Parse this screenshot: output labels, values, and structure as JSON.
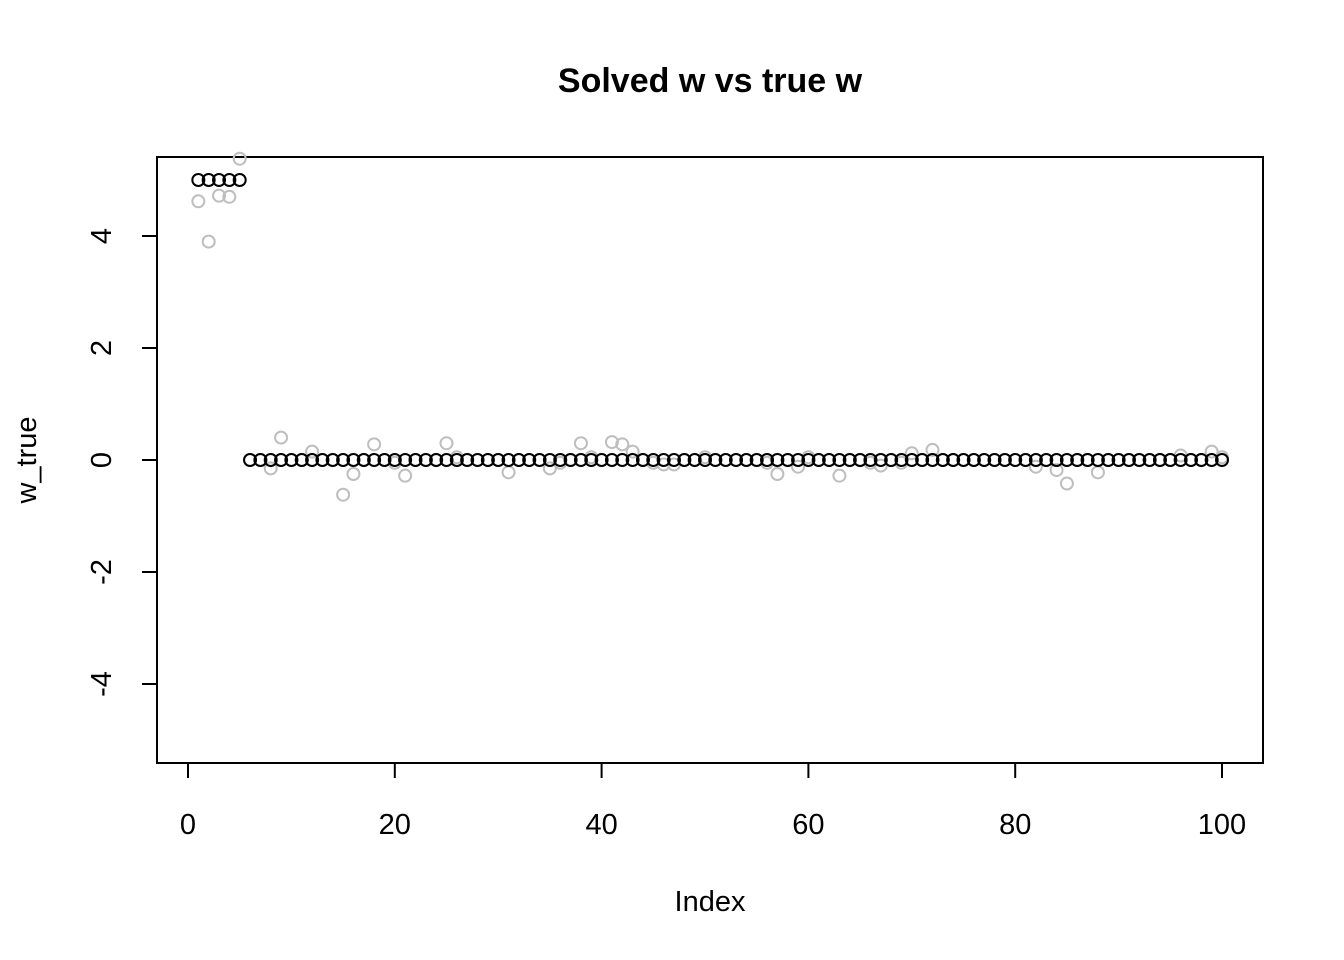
{
  "chart_data": {
    "type": "scatter",
    "title": "Solved w vs true w",
    "xlabel": "Index",
    "ylabel": "w_true",
    "xlim": [
      -3,
      104
    ],
    "ylim": [
      -5.4,
      5.4
    ],
    "xticks": [
      0,
      20,
      40,
      60,
      80,
      100
    ],
    "yticks": [
      -4,
      -2,
      0,
      2,
      4
    ],
    "grid": false,
    "legend": "none",
    "colors": {
      "w_true": "#000000",
      "w_solved": "#bebebe"
    },
    "series": [
      {
        "values": [
          5,
          5,
          5,
          5,
          5,
          0,
          0,
          0,
          0,
          0,
          0,
          0,
          0,
          0,
          0,
          0,
          0,
          0,
          0,
          0,
          0,
          0,
          0,
          0,
          0,
          0,
          0,
          0,
          0,
          0,
          0,
          0,
          0,
          0,
          0,
          0,
          0,
          0,
          0,
          0,
          0,
          0,
          0,
          0,
          0,
          0,
          0,
          0,
          0,
          0,
          0,
          0,
          0,
          0,
          0,
          0,
          0,
          0,
          0,
          0,
          0,
          0,
          0,
          0,
          0,
          0,
          0,
          0,
          0,
          0,
          0,
          0,
          0,
          0,
          0,
          0,
          0,
          0,
          0,
          0,
          0,
          0,
          0,
          0,
          0,
          0,
          0,
          0,
          0,
          0,
          0,
          0,
          0,
          0,
          0,
          0,
          0,
          0,
          0,
          0
        ]
      },
      {
        "values": [
          4.62,
          3.9,
          4.72,
          4.7,
          5.38,
          0,
          0,
          -0.15,
          0.4,
          0,
          0,
          0.15,
          0,
          0,
          -0.62,
          -0.25,
          0,
          0.28,
          0,
          -0.05,
          -0.28,
          0,
          0,
          0,
          0.3,
          0.05,
          0,
          0,
          0,
          0,
          -0.22,
          0,
          0,
          0,
          -0.15,
          -0.05,
          0,
          0.3,
          0.05,
          0,
          0.32,
          0.28,
          0.15,
          0,
          -0.05,
          -0.08,
          -0.08,
          0,
          0,
          0.05,
          0,
          0,
          0,
          0,
          0,
          -0.05,
          -0.25,
          0,
          -0.12,
          0.05,
          0,
          0,
          -0.28,
          0,
          0,
          -0.05,
          -0.1,
          0,
          -0.05,
          0.12,
          0,
          0.18,
          0,
          0,
          0,
          0,
          0,
          0,
          0,
          0,
          0,
          -0.12,
          0,
          -0.18,
          -0.42,
          0,
          0,
          -0.22,
          0,
          0,
          0,
          0,
          0,
          0,
          0,
          0.08,
          0,
          0,
          0.15,
          0.05
        ]
      }
    ]
  }
}
